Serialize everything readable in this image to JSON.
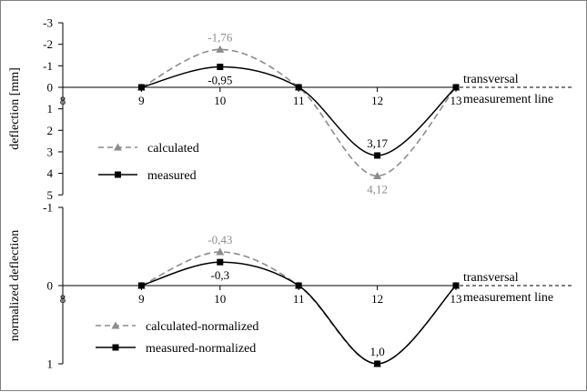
{
  "colors": {
    "calculated": "#8c8c8c",
    "measured": "#000000"
  },
  "annotation": {
    "line1": "transversal",
    "line2": "measurement line"
  },
  "chart_data": [
    {
      "type": "line",
      "ylabel": "deflection [mm]",
      "x_ticks": [
        8,
        9,
        10,
        11,
        12,
        13
      ],
      "y_ticks": [
        {
          "v": -3,
          "t": "-3"
        },
        {
          "v": -2,
          "t": "-2"
        },
        {
          "v": -1,
          "t": "-1"
        },
        {
          "v": 0,
          "t": "0"
        },
        {
          "v": 1,
          "t": "1"
        },
        {
          "v": 2,
          "t": "2"
        },
        {
          "v": 3,
          "t": "3"
        },
        {
          "v": 4,
          "t": "4"
        },
        {
          "v": 5,
          "t": "5"
        }
      ],
      "ylim": [
        -3,
        5
      ],
      "y_inverted": true,
      "series": [
        {
          "name": "calculated",
          "style": "dashed",
          "marker": "triangle",
          "x": [
            9,
            10,
            11,
            12,
            13
          ],
          "y": [
            0,
            -1.76,
            0,
            4.12,
            0
          ],
          "labels": [
            {
              "i": 1,
              "text": "-1,76",
              "pos": "above"
            },
            {
              "i": 3,
              "text": "4,12",
              "pos": "below"
            }
          ]
        },
        {
          "name": "measured",
          "style": "solid",
          "marker": "square",
          "x": [
            9,
            10,
            11,
            12,
            13
          ],
          "y": [
            0,
            -0.95,
            0,
            3.17,
            0
          ],
          "labels": [
            {
              "i": 1,
              "text": "-0,95",
              "pos": "below"
            },
            {
              "i": 3,
              "text": "3,17",
              "pos": "above"
            }
          ]
        }
      ]
    },
    {
      "type": "line",
      "ylabel": "normalized deflection",
      "x_ticks": [
        8,
        9,
        10,
        11,
        12,
        13
      ],
      "y_ticks": [
        {
          "v": -1,
          "t": "-1"
        },
        {
          "v": 0,
          "t": "0"
        },
        {
          "v": 1,
          "t": "1"
        }
      ],
      "ylim": [
        -1,
        1
      ],
      "y_inverted": true,
      "series": [
        {
          "name": "calculated-normalized",
          "style": "dashed",
          "marker": "triangle",
          "x": [
            9,
            10,
            11,
            12,
            13
          ],
          "y": [
            0,
            -0.43,
            0,
            1.0,
            0
          ],
          "labels": [
            {
              "i": 1,
              "text": "-0,43",
              "pos": "above"
            }
          ]
        },
        {
          "name": "measured-normalized",
          "style": "solid",
          "marker": "square",
          "x": [
            9,
            10,
            11,
            12,
            13
          ],
          "y": [
            0,
            -0.3,
            0,
            1.0,
            0
          ],
          "labels": [
            {
              "i": 1,
              "text": "-0,3",
              "pos": "below"
            },
            {
              "i": 3,
              "text": "1,0",
              "pos": "above"
            }
          ]
        }
      ]
    }
  ]
}
